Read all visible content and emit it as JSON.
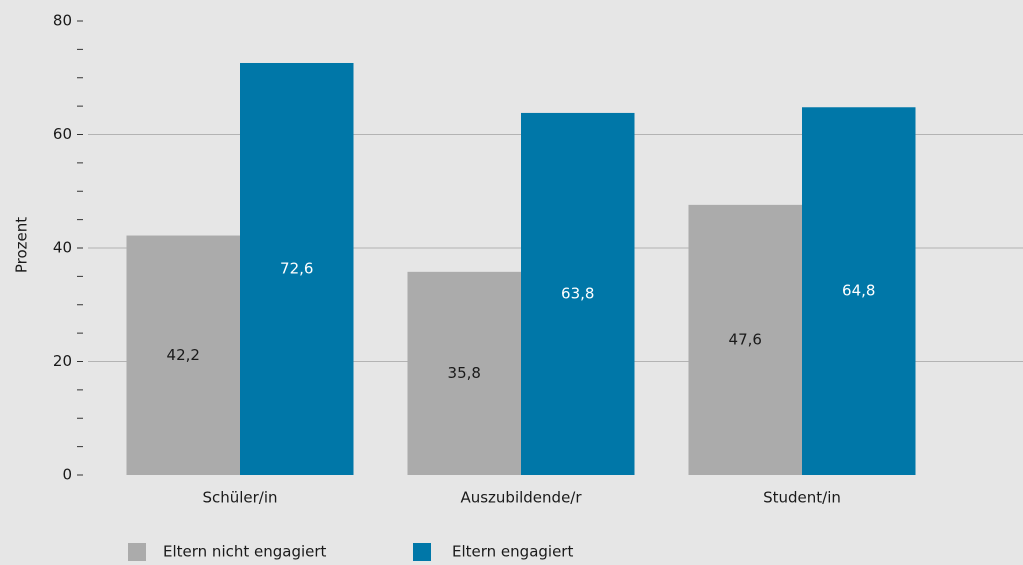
{
  "chart_data": {
    "type": "bar",
    "y_label": "Prozent",
    "categories": [
      "Schüler/in",
      "Auszubildende/r",
      "Student/in"
    ],
    "series": [
      {
        "name": "Eltern nicht engagiert",
        "color": "#ababab",
        "values": [
          42.2,
          35.8,
          47.6
        ],
        "value_labels": [
          "42,2",
          "35,8",
          "47,6"
        ]
      },
      {
        "name": "Eltern engagiert",
        "color": "#0077a8",
        "values": [
          72.6,
          63.8,
          64.8
        ],
        "value_labels": [
          "72,6",
          "63,8",
          "64,8"
        ]
      }
    ],
    "ylim": [
      0,
      80
    ],
    "yticks": [
      0,
      20,
      40,
      60,
      80
    ],
    "yticks_minor": [
      5,
      10,
      15,
      25,
      30,
      35,
      45,
      50,
      55,
      65,
      70,
      75
    ],
    "grid": true
  }
}
